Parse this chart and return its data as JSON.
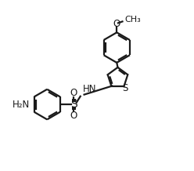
{
  "bg_color": "#ffffff",
  "line_color": "#1a1a1a",
  "line_width": 1.6,
  "font_size": 8.5,
  "xlim": [
    0,
    10
  ],
  "ylim": [
    0,
    9
  ]
}
